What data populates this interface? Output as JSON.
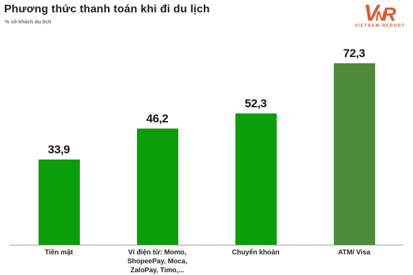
{
  "logo": {
    "letters": [
      "V",
      "N",
      "R"
    ],
    "caption": "VIETNAM REPORT",
    "color": "#e4572e"
  },
  "chart_data": {
    "type": "bar",
    "title": "Phương thức thanh toán khi đi du lịch",
    "subtitle": "% số khách du lịch",
    "categories": [
      "Tiền mặt",
      "Ví điện tử: Momo,\nShopeePay, Moca,\nZaloPay, Timo,...",
      "Chuyển khoản",
      "ATM/ Visa"
    ],
    "values": [
      33.9,
      46.2,
      52.3,
      72.3
    ],
    "value_labels": [
      "33,9",
      "46,2",
      "52,3",
      "72,3"
    ],
    "bar_colors": [
      "#0a9e0a",
      "#0a9e0a",
      "#0a9e0a",
      "#4e8b3a"
    ],
    "ylim": [
      0,
      85
    ],
    "grid": false,
    "legend_position": "none",
    "xlabel": "",
    "ylabel": "% số khách du lịch",
    "axis_line_color": "#9a9a9a"
  }
}
